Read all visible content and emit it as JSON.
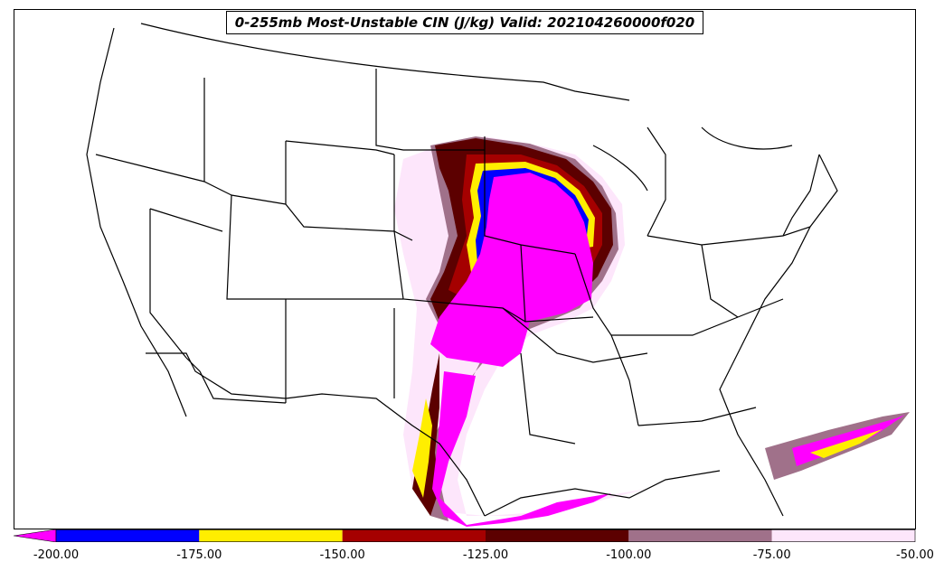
{
  "title": "0-255mb Most-Unstable CIN (J/kg) Valid: 202104260000f020",
  "colorbar": {
    "ticks": [
      "-200.00",
      "-175.00",
      "-150.00",
      "-125.00",
      "-100.00",
      "-75.00",
      "-50.00"
    ],
    "tick_values": [
      -200,
      -175,
      -150,
      -125,
      -100,
      -75,
      -50
    ],
    "extend": "min",
    "bins": [
      {
        "from": -250,
        "to": -200,
        "color": "#ff00ff"
      },
      {
        "from": -200,
        "to": -175,
        "color": "#0000ff"
      },
      {
        "from": -175,
        "to": -150,
        "color": "#ffee00"
      },
      {
        "from": -150,
        "to": -125,
        "color": "#a50000"
      },
      {
        "from": -125,
        "to": -100,
        "color": "#5c0000"
      },
      {
        "from": -100,
        "to": -75,
        "color": "#a0718a"
      },
      {
        "from": -75,
        "to": -50,
        "color": "#fde6fb"
      }
    ]
  }
}
